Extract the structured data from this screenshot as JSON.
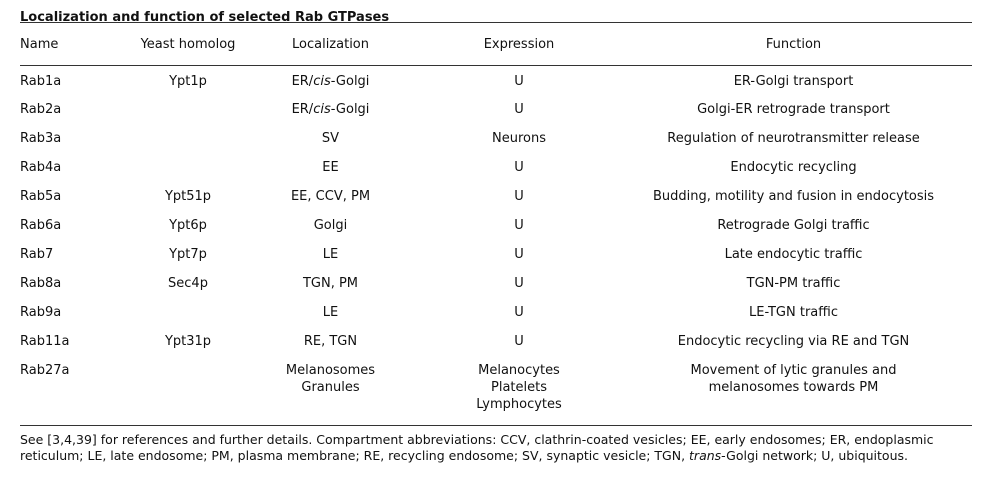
{
  "title": "Localization and function of selected Rab GTPases",
  "headers": {
    "name": "Name",
    "yeast": "Yeast homolog",
    "localization": "Localization",
    "expression": "Expression",
    "function": "Function"
  },
  "rows": [
    {
      "name": "Rab1a",
      "yeast": "Ypt1p",
      "loc_pre": "ER/",
      "loc_it": "cis",
      "loc_post": "-Golgi",
      "expr": "U",
      "func": "ER-Golgi transport"
    },
    {
      "name": "Rab2a",
      "yeast": "",
      "loc_pre": "ER/",
      "loc_it": "cis",
      "loc_post": "-Golgi",
      "expr": "U",
      "func": "Golgi-ER retrograde transport"
    },
    {
      "name": "Rab3a",
      "yeast": "",
      "loc_pre": "SV",
      "loc_it": "",
      "loc_post": "",
      "expr": "Neurons",
      "func": "Regulation of neurotransmitter release"
    },
    {
      "name": "Rab4a",
      "yeast": "",
      "loc_pre": "EE",
      "loc_it": "",
      "loc_post": "",
      "expr": "U",
      "func": "Endocytic recycling"
    },
    {
      "name": "Rab5a",
      "yeast": "Ypt51p",
      "loc_pre": "EE, CCV, PM",
      "loc_it": "",
      "loc_post": "",
      "expr": "U",
      "func": "Budding, motility and fusion in endocytosis"
    },
    {
      "name": "Rab6a",
      "yeast": "Ypt6p",
      "loc_pre": "Golgi",
      "loc_it": "",
      "loc_post": "",
      "expr": "U",
      "func": "Retrograde Golgi traffic"
    },
    {
      "name": "Rab7",
      "yeast": "Ypt7p",
      "loc_pre": "LE",
      "loc_it": "",
      "loc_post": "",
      "expr": "U",
      "func": "Late endocytic traffic"
    },
    {
      "name": "Rab8a",
      "yeast": "Sec4p",
      "loc_pre": "TGN, PM",
      "loc_it": "",
      "loc_post": "",
      "expr": "U",
      "func": "TGN-PM traffic"
    },
    {
      "name": "Rab9a",
      "yeast": "",
      "loc_pre": "LE",
      "loc_it": "",
      "loc_post": "",
      "expr": "U",
      "func": "LE-TGN traffic"
    },
    {
      "name": "Rab11a",
      "yeast": "Ypt31p",
      "loc_pre": "RE, TGN",
      "loc_it": "",
      "loc_post": "",
      "expr": "U",
      "func": "Endocytic recycling via RE and TGN"
    }
  ],
  "last_row": {
    "name": "Rab27a",
    "yeast": "",
    "loc_lines": [
      "Melanosomes",
      "Granules"
    ],
    "expr_lines": [
      "Melanocytes",
      "Platelets",
      "Lymphocytes"
    ],
    "func_lines": [
      "Movement of lytic granules and",
      "melanosomes towards PM"
    ]
  },
  "footnote": {
    "part1": "See [3,4,39] for references and further details. Compartment abbreviations: CCV, clathrin-coated vesicles; EE, early endosomes; ER, endoplasmic reticulum; LE, late endosome; PM, plasma membrane; RE, recycling endosome; SV, synaptic vesicle; TGN, ",
    "italic": "trans",
    "part2": "-Golgi network; U, ubiquitous."
  }
}
